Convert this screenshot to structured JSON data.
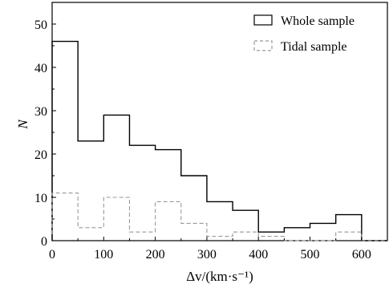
{
  "chart_data": {
    "type": "histogram",
    "xlabel": "Δv/(km·s⁻¹)",
    "ylabel": "N",
    "xlim": [
      0,
      650
    ],
    "ylim": [
      0,
      55
    ],
    "xticks": [
      0,
      100,
      200,
      300,
      400,
      500,
      600
    ],
    "yticks": [
      0,
      10,
      20,
      30,
      40,
      50
    ],
    "bin_edges": [
      0,
      50,
      100,
      150,
      200,
      250,
      300,
      350,
      400,
      450,
      500,
      550,
      600,
      650
    ],
    "series": [
      {
        "name": "Whole sample",
        "values": [
          46,
          23,
          29,
          22,
          21,
          15,
          9,
          7,
          2,
          3,
          4,
          6,
          0
        ],
        "color": "#000000",
        "line_style": "solid"
      },
      {
        "name": "Tidal sample",
        "values": [
          11,
          3,
          10,
          2,
          9,
          4,
          1,
          2,
          1,
          0,
          0,
          2,
          0
        ],
        "color": "#999999",
        "line_style": "dashed"
      }
    ],
    "legend_position": "top-right",
    "grid": false
  }
}
